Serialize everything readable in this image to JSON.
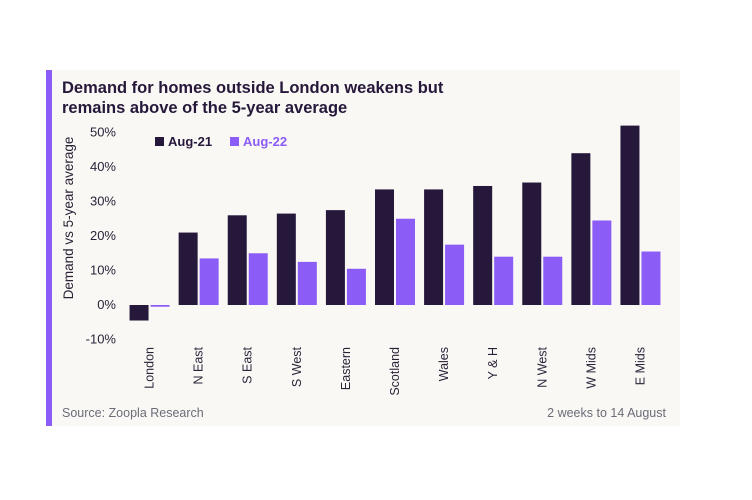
{
  "header": {
    "title": "Demand for homes outside London weakens but remains above of the 5-year average"
  },
  "footer": {
    "source": "Source: Zoopla Research",
    "period": "2 weeks to 14 August"
  },
  "colors": {
    "accent": "#8b5cf6",
    "series1": "#25183a",
    "series2": "#8b5cf6",
    "background": "#faf8f5"
  },
  "chart_data": {
    "type": "bar",
    "title": "Demand for homes outside London weakens but remains above of the 5-year average",
    "ylabel": "Demand  vs 5-year average",
    "xlabel": "",
    "categories": [
      "London",
      "N East",
      "S East",
      "S West",
      "Eastern",
      "Scotland",
      "Wales",
      "Y & H",
      "N West",
      "W Mids",
      "E Mids"
    ],
    "series": [
      {
        "name": "Aug-21",
        "values": [
          -4.5,
          21,
          26,
          26.5,
          27.5,
          33.5,
          33.5,
          34.5,
          35.5,
          44,
          52
        ]
      },
      {
        "name": "Aug-22",
        "values": [
          -0.5,
          13.5,
          15,
          12.5,
          10.5,
          25,
          17.5,
          14,
          14,
          24.5,
          15.5
        ]
      }
    ],
    "ylim": [
      -10,
      50
    ],
    "yticks": [
      "-10%",
      "0%",
      "10%",
      "20%",
      "30%",
      "40%",
      "50%"
    ],
    "legend_position": "top-left",
    "grid": false
  }
}
